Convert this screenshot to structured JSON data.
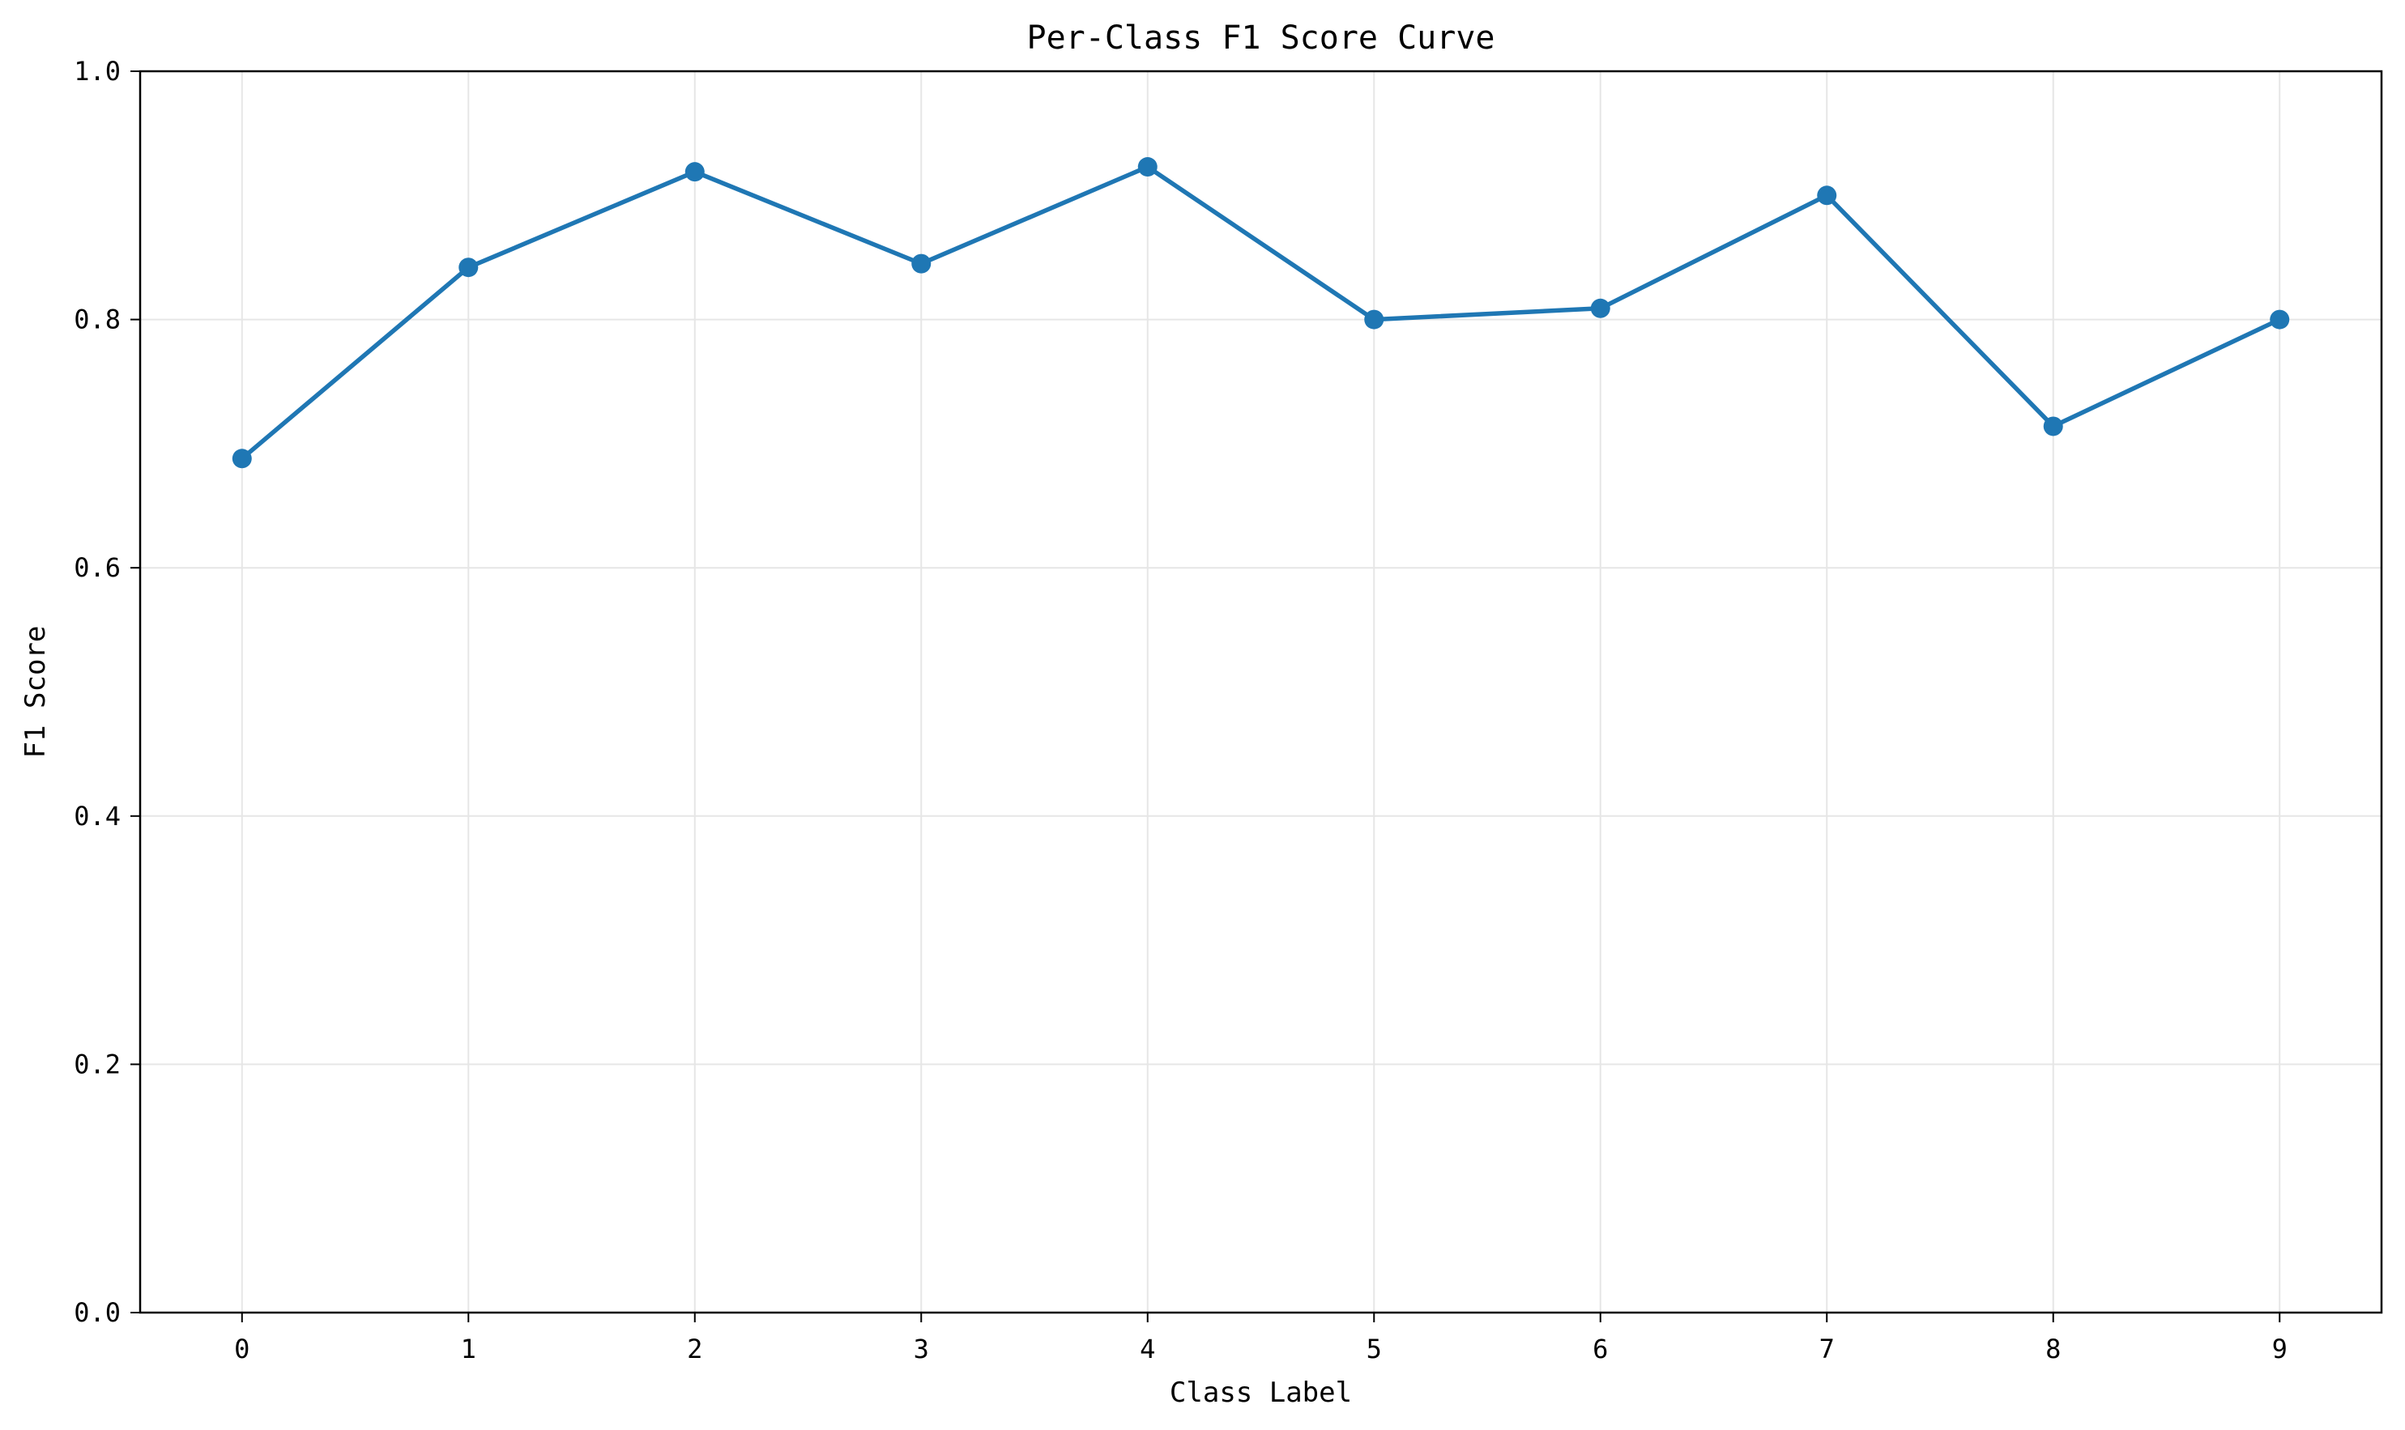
{
  "chart_data": {
    "type": "line",
    "title": "Per-Class F1 Score Curve",
    "xlabel": "Class Label",
    "ylabel": "F1 Score",
    "x": [
      0,
      1,
      2,
      3,
      4,
      5,
      6,
      7,
      8,
      9
    ],
    "x_tick_labels": [
      "0",
      "1",
      "2",
      "3",
      "4",
      "5",
      "6",
      "7",
      "8",
      "9"
    ],
    "xlim": [
      -0.45,
      9.45
    ],
    "ylim": [
      0.0,
      1.0
    ],
    "y_ticks": [
      0.0,
      0.2,
      0.4,
      0.6,
      0.8,
      1.0
    ],
    "y_tick_labels": [
      "0.0",
      "0.2",
      "0.4",
      "0.6",
      "0.8",
      "1.0"
    ],
    "series": [
      {
        "values": [
          0.688,
          0.842,
          0.919,
          0.845,
          0.923,
          0.8,
          0.809,
          0.9,
          0.714,
          0.8
        ],
        "color": "#1f77b4",
        "marker": "circle"
      }
    ],
    "grid": true,
    "grid_color": "#e6e6e6",
    "legend": "none"
  }
}
